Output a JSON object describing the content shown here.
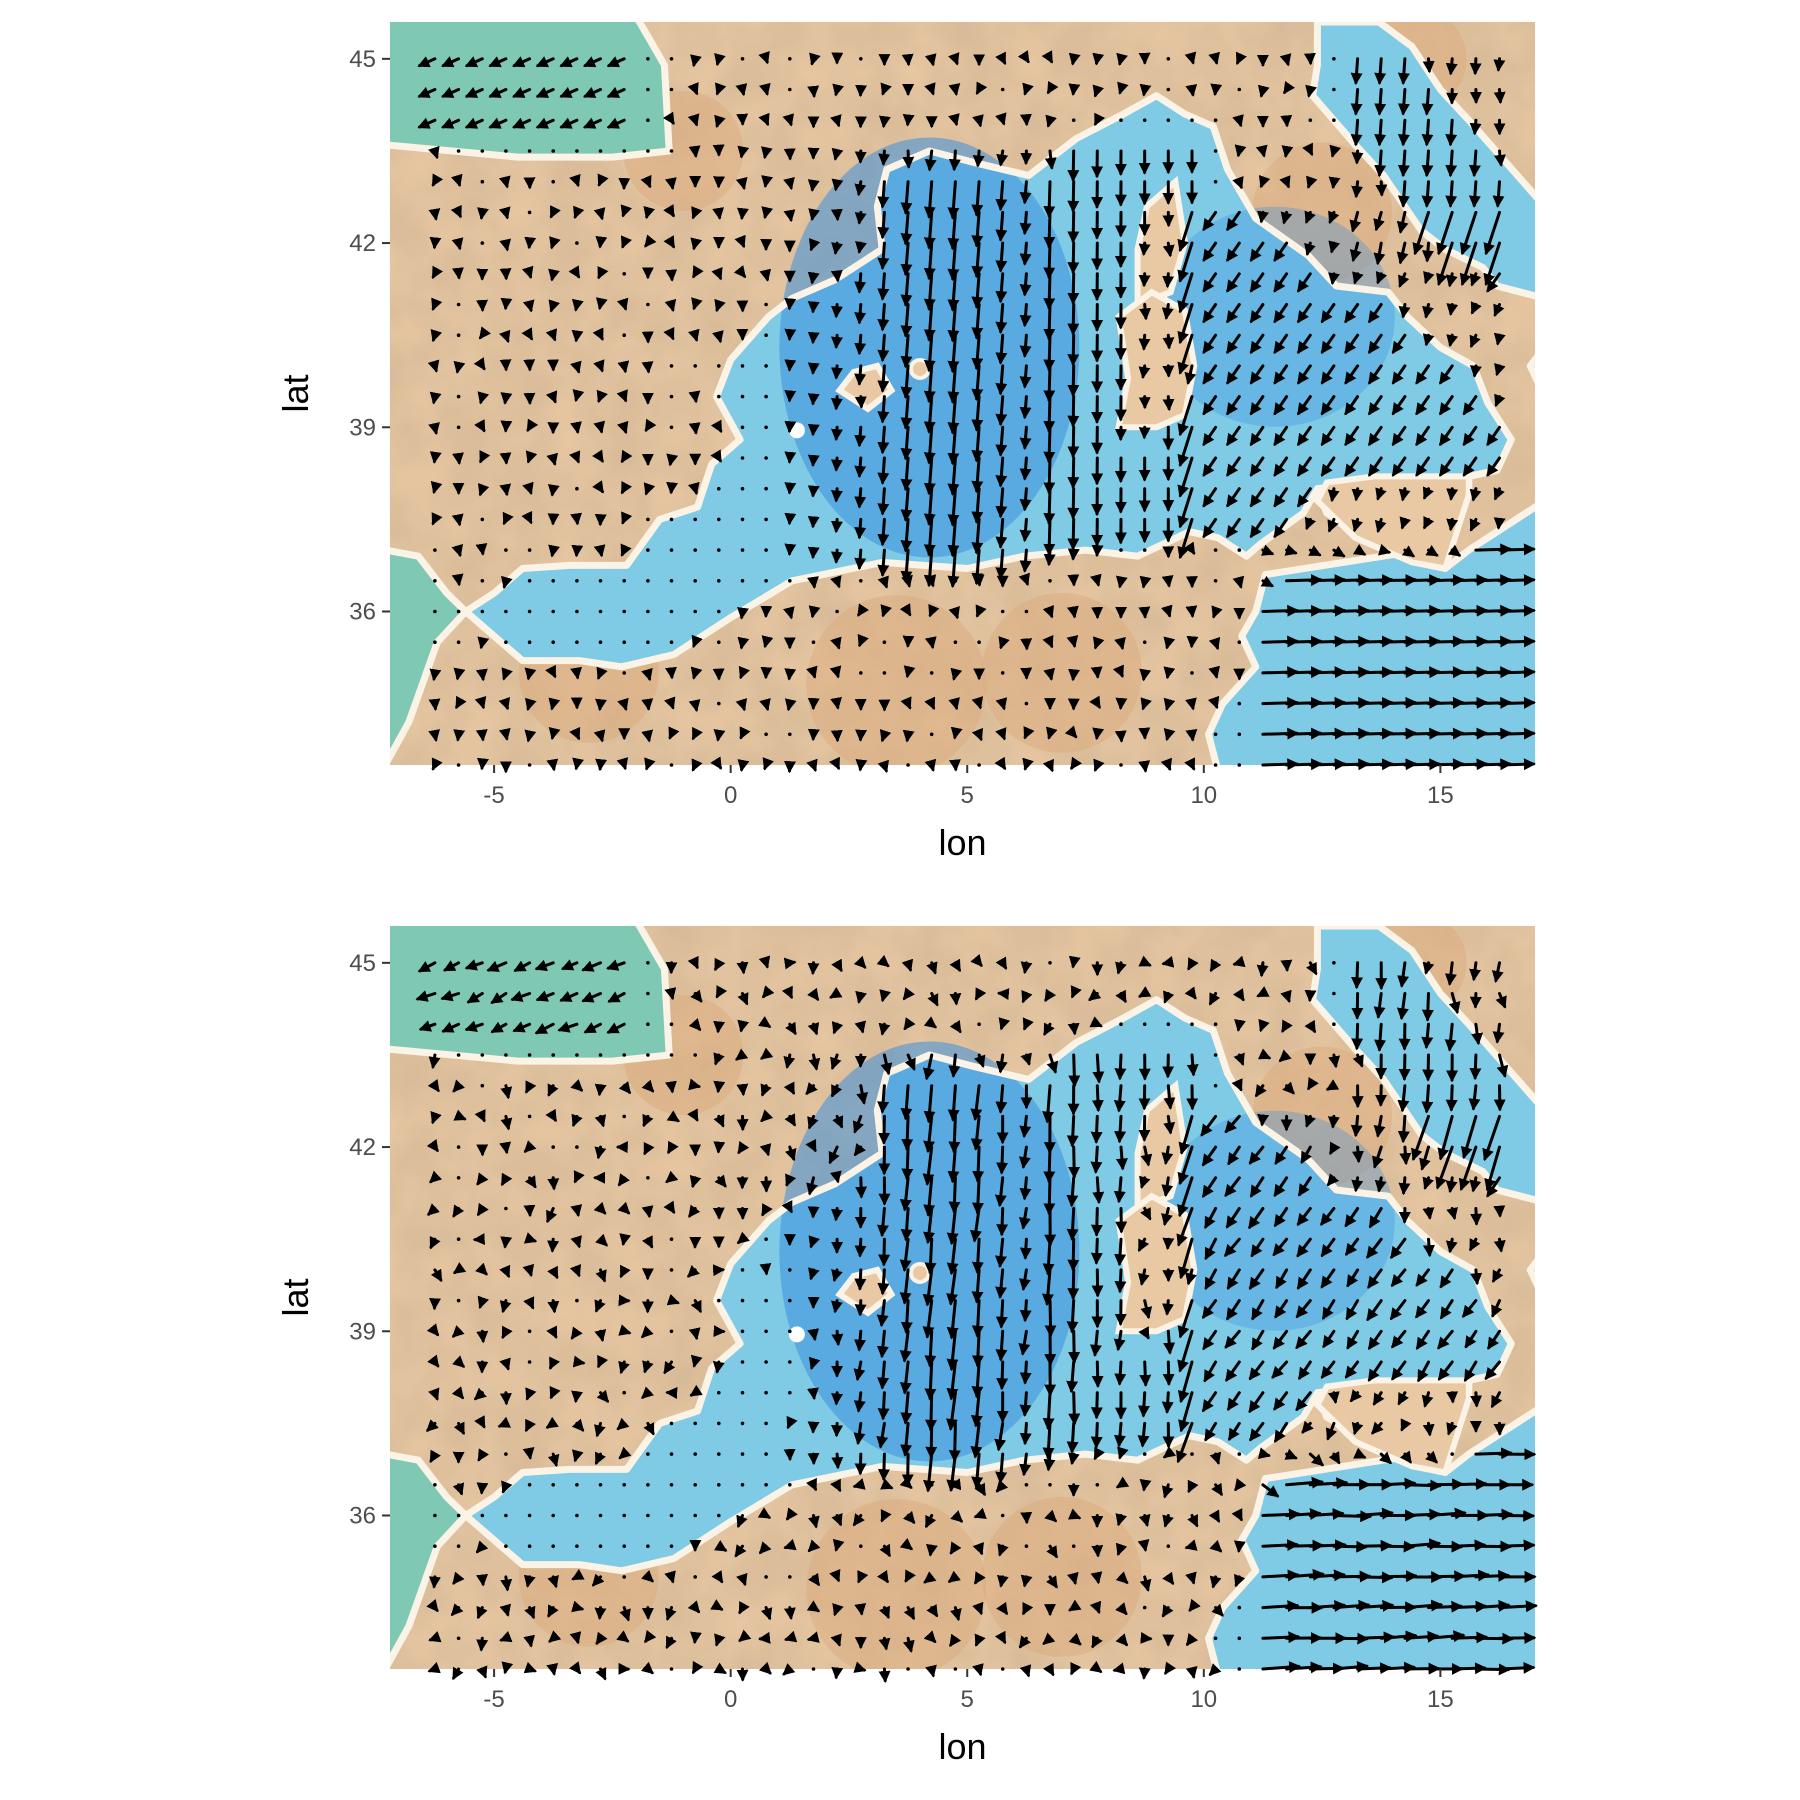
{
  "colors": {
    "land": "#e9c9a4",
    "land_dark": "#d9a97a",
    "sea": "#7fcbe6",
    "sea_deep": "#3b8fdc",
    "atlantic": "#7fc9b4",
    "coast": "#fbf3e6",
    "arrow": "#000000"
  },
  "chart_data": [
    {
      "type": "vector-field",
      "panel": "top",
      "xlabel": "lon",
      "ylabel": "lat",
      "xlim": [
        -7.2,
        17
      ],
      "ylim": [
        33.5,
        45.6
      ],
      "xticks": [
        "-5",
        "0",
        "5",
        "10",
        "15"
      ],
      "xtick_values": [
        -5,
        0,
        5,
        10,
        15
      ],
      "yticks": [
        "36",
        "39",
        "42",
        "45"
      ],
      "ytick_values": [
        36,
        39,
        42,
        45
      ],
      "grid": false,
      "vectors": {
        "lon_start": -6.25,
        "lon_end": 16.25,
        "lon_step": 0.5,
        "lat_start": 33.5,
        "lat_end": 45.0,
        "lat_step": 0.5,
        "variant": 0
      }
    },
    {
      "type": "vector-field",
      "panel": "bottom",
      "xlabel": "lon",
      "ylabel": "lat",
      "xlim": [
        -7.2,
        17
      ],
      "ylim": [
        33.5,
        45.6
      ],
      "xticks": [
        "-5",
        "0",
        "5",
        "10",
        "15"
      ],
      "xtick_values": [
        -5,
        0,
        5,
        10,
        15
      ],
      "yticks": [
        "36",
        "39",
        "42",
        "45"
      ],
      "ytick_values": [
        36,
        39,
        42,
        45
      ],
      "grid": false,
      "vectors": {
        "lon_start": -6.25,
        "lon_end": 16.25,
        "lon_step": 0.5,
        "lat_start": 33.5,
        "lat_end": 45.0,
        "lat_step": 0.5,
        "variant": 1
      }
    }
  ]
}
